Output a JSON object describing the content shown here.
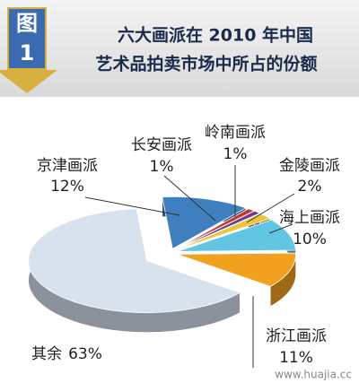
{
  "chart_data": {
    "type": "pie3d",
    "badge": [
      "图",
      "1"
    ],
    "title": [
      "六大画派在 2010 年中国",
      "艺术品拍卖市场中所占的份额"
    ],
    "categories": [
      "京津画派",
      "长安画派",
      "岭南画派",
      "金陵画派",
      "海上画派",
      "浙江画派",
      "其余"
    ],
    "values": [
      12,
      1,
      1,
      2,
      10,
      11,
      63
    ],
    "value_labels": [
      "12%",
      "1%",
      "1%",
      "2%",
      "10%",
      "11%",
      "63%"
    ],
    "colors": [
      "#3f7fc0",
      "#c8342c",
      "#6a3a8c",
      "#e8c83a",
      "#62c6e2",
      "#f2a11e",
      "#d8e1ee"
    ],
    "watermark": "www.huajia.cc"
  }
}
